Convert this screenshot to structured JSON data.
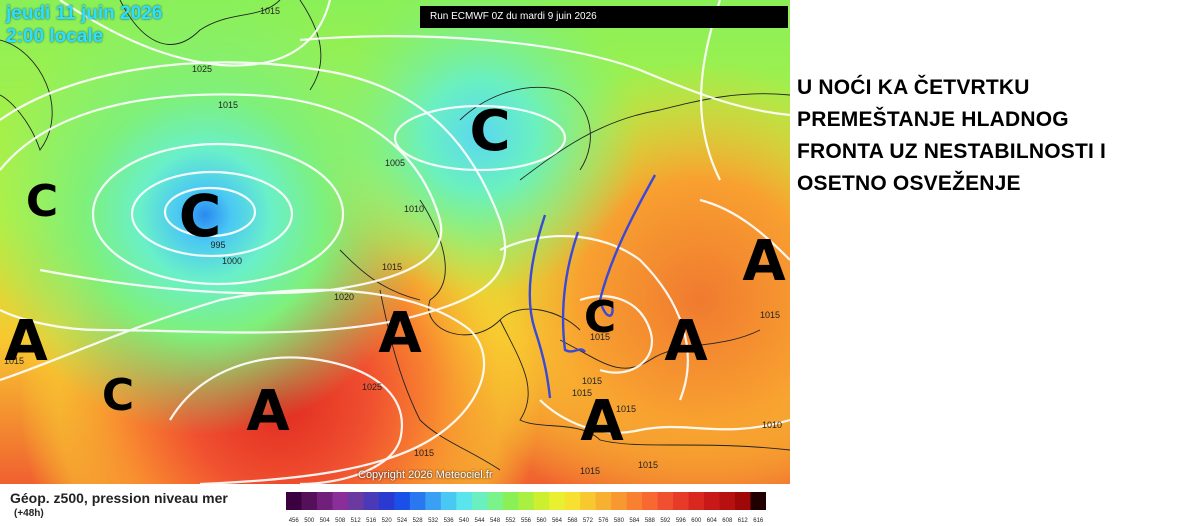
{
  "header": {
    "date": "jeudi 11 juin 2026",
    "time": "2:00 locale",
    "run": "Run ECMWF 0Z du mardi 9 juin 2026"
  },
  "copyright": "Copyright 2026 Meteociel.fr",
  "annotation_lines": [
    "U NOĆI KA ČETVRTKU",
    "PREMEŠTANJE HLADNOG",
    "FRONTA UZ NESTABILNOSTI I",
    "OSETNO OSVEŽENJE"
  ],
  "legend": {
    "title": "Géop. z500, pression niveau mer",
    "subtitle": "(+48h)",
    "ticks": [
      "456",
      "500",
      "504",
      "508",
      "512",
      "516",
      "520",
      "524",
      "528",
      "532",
      "536",
      "540",
      "544",
      "548",
      "552",
      "556",
      "560",
      "564",
      "568",
      "572",
      "576",
      "580",
      "584",
      "588",
      "592",
      "596",
      "600",
      "604",
      "608",
      "612",
      "616"
    ],
    "colors": [
      "#3a0040",
      "#55105a",
      "#70207a",
      "#8a2e99",
      "#6a3aa0",
      "#4a3ab8",
      "#2a3ad0",
      "#1a50e8",
      "#2a78f0",
      "#3aa0f4",
      "#4ac8f4",
      "#5ae4ec",
      "#6af0c0",
      "#7af48a",
      "#8af058",
      "#aaf040",
      "#ccf030",
      "#e8f030",
      "#f8e030",
      "#f8c830",
      "#f8b030",
      "#f89830",
      "#f88030",
      "#f86830",
      "#f05030",
      "#e83a28",
      "#d82820",
      "#c81818",
      "#b81010",
      "#a00808",
      "#200000"
    ]
  },
  "pressure_centers": [
    {
      "letter": "C",
      "name": "low-iceland"
    },
    {
      "letter": "C",
      "name": "low-atlantic"
    },
    {
      "letter": "C",
      "name": "low-norway"
    },
    {
      "letter": "C",
      "name": "low-azores-west"
    },
    {
      "letter": "C",
      "name": "low-balkans"
    },
    {
      "letter": "A",
      "name": "high-azores"
    },
    {
      "letter": "A",
      "name": "high-west"
    },
    {
      "letter": "A",
      "name": "high-biscay"
    },
    {
      "letter": "A",
      "name": "high-mediterranean"
    },
    {
      "letter": "A",
      "name": "high-black-sea"
    },
    {
      "letter": "A",
      "name": "high-russia"
    }
  ],
  "isobar_labels": [
    "1015",
    "1025",
    "1015",
    "1005",
    "995",
    "1000",
    "1010",
    "1015",
    "1020",
    "1025",
    "1015",
    "1015",
    "1015",
    "1015",
    "1015",
    "1015",
    "1015",
    "1015",
    "1010",
    "1015"
  ]
}
